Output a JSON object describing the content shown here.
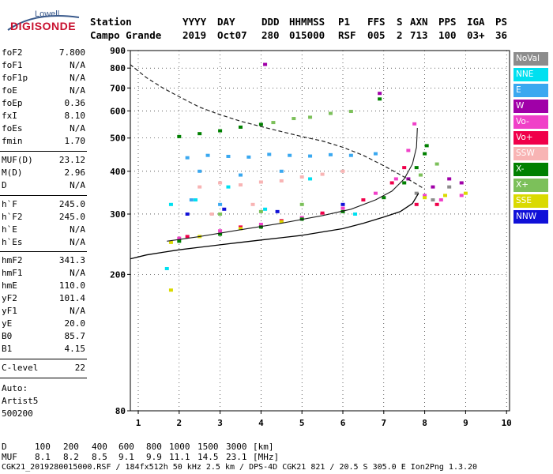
{
  "logo": {
    "line1": "Lowell",
    "line2": "DIGISONDE"
  },
  "header": {
    "labels": [
      "Station",
      "YYYY",
      "DAY",
      "DDD",
      "HHMMSS",
      "P1",
      "FFS",
      "S",
      "AXN",
      "PPS",
      "IGA",
      "PS"
    ],
    "values": [
      "Campo Grande",
      "2019",
      "Oct07",
      "280",
      "015000",
      "RSF",
      "005",
      "2",
      "713",
      "100",
      "03+",
      "36"
    ]
  },
  "params": {
    "g1": [
      {
        "k": "foF2",
        "v": "7.800"
      },
      {
        "k": "foF1",
        "v": "N/A"
      },
      {
        "k": "foF1p",
        "v": "N/A"
      },
      {
        "k": "foE",
        "v": "N/A"
      },
      {
        "k": "foEp",
        "v": "0.36"
      },
      {
        "k": "fxI",
        "v": "8.10"
      },
      {
        "k": "foEs",
        "v": "N/A"
      },
      {
        "k": "fmin",
        "v": "1.70"
      }
    ],
    "g2": [
      {
        "k": "MUF(D)",
        "v": "23.12"
      },
      {
        "k": "M(D)",
        "v": "2.96"
      },
      {
        "k": "D",
        "v": "N/A"
      }
    ],
    "g3": [
      {
        "k": "h`F",
        "v": "245.0"
      },
      {
        "k": "h`F2",
        "v": "245.0"
      },
      {
        "k": "h`E",
        "v": "N/A"
      },
      {
        "k": "h`Es",
        "v": "N/A"
      }
    ],
    "g4": [
      {
        "k": "hmF2",
        "v": "341.3"
      },
      {
        "k": "hmF1",
        "v": "N/A"
      },
      {
        "k": "hmE",
        "v": "110.0"
      },
      {
        "k": "yF2",
        "v": "101.4"
      },
      {
        "k": "yF1",
        "v": "N/A"
      },
      {
        "k": "yE",
        "v": "20.0"
      },
      {
        "k": "B0",
        "v": "85.7"
      },
      {
        "k": "B1",
        "v": "4.15"
      }
    ],
    "g5": [
      {
        "k": "C-level",
        "v": "22"
      }
    ],
    "autoscale": [
      "Auto:",
      "Artist5",
      "500200"
    ]
  },
  "legend": [
    {
      "label": "NoVal",
      "color": "#8c8c8c"
    },
    {
      "label": "NNE",
      "color": "#00e0f0"
    },
    {
      "label": "E",
      "color": "#3aa8f0"
    },
    {
      "label": "W",
      "color": "#a000a8"
    },
    {
      "label": "Vo-",
      "color": "#f040c8"
    },
    {
      "label": "Vo+",
      "color": "#f0004a"
    },
    {
      "label": "SSW",
      "color": "#f8b4b4"
    },
    {
      "label": "X-",
      "color": "#008000"
    },
    {
      "label": "X+",
      "color": "#7cc05a"
    },
    {
      "label": "SSE",
      "color": "#dada00"
    },
    {
      "label": "NNW",
      "color": "#1010d8"
    }
  ],
  "footer": {
    "d_label": "D",
    "d_values": [
      "100",
      "200",
      "400",
      "600",
      "800",
      "1000",
      "1500",
      "3000"
    ],
    "d_unit": "[km]",
    "muf_label": "MUF",
    "muf_values": [
      "8.1",
      "8.2",
      "8.5",
      "9.1",
      "9.9",
      "11.1",
      "14.5",
      "23.1"
    ],
    "muf_unit": "[MHz]",
    "info": "CGK21_2019280015000.RSF / 184fx512h 50 kHz 2.5 km / DPS-4D CGK21 821 / 20.5 S 305.0 E Ion2Png 1.3.20"
  },
  "chart_data": {
    "type": "scatter",
    "title": "",
    "xlabel": "",
    "ylabel": "",
    "xlim": [
      0.8,
      10
    ],
    "ylim": [
      80,
      900
    ],
    "y_scale": "log",
    "xticks": [
      "1",
      "2",
      "3",
      "4",
      "5",
      "6",
      "7",
      "8",
      "9",
      "10"
    ],
    "yticks": [
      "80",
      "200",
      "300",
      "400",
      "500",
      "600",
      "700",
      "800",
      "900"
    ],
    "grid": "dotted",
    "legend_position": "right",
    "series": [
      {
        "name": "NoVal",
        "color": "#8c8c8c",
        "points": [
          [
            7.8,
            345
          ],
          [
            8.2,
            330
          ],
          [
            8.6,
            360
          ]
        ]
      },
      {
        "name": "NNE",
        "color": "#00e0f0",
        "points": [
          [
            1.8,
            320
          ],
          [
            2.4,
            330
          ],
          [
            3.2,
            360
          ],
          [
            4.1,
            310
          ],
          [
            5.2,
            380
          ],
          [
            6.3,
            300
          ],
          [
            1.7,
            208
          ]
        ]
      },
      {
        "name": "E",
        "color": "#3aa8f0",
        "points": [
          [
            2.2,
            438
          ],
          [
            2.7,
            445
          ],
          [
            3.2,
            442
          ],
          [
            3.7,
            440
          ],
          [
            4.2,
            448
          ],
          [
            4.7,
            445
          ],
          [
            5.2,
            443
          ],
          [
            5.7,
            447
          ],
          [
            6.2,
            445
          ],
          [
            6.8,
            450
          ],
          [
            2.5,
            400
          ],
          [
            3.5,
            390
          ],
          [
            4.5,
            400
          ],
          [
            2.3,
            330
          ],
          [
            3.0,
            320
          ]
        ]
      },
      {
        "name": "W",
        "color": "#a000a8",
        "points": [
          [
            4.1,
            820
          ],
          [
            6.9,
            675
          ],
          [
            8.2,
            360
          ],
          [
            8.6,
            380
          ],
          [
            8.9,
            370
          ],
          [
            7.6,
            380
          ]
        ]
      },
      {
        "name": "Vo-",
        "color": "#f040c8",
        "points": [
          [
            2.0,
            255
          ],
          [
            3.0,
            268
          ],
          [
            4.0,
            280
          ],
          [
            5.0,
            293
          ],
          [
            6.0,
            312
          ],
          [
            6.8,
            345
          ],
          [
            7.3,
            380
          ],
          [
            7.6,
            460
          ],
          [
            7.75,
            550
          ],
          [
            8.0,
            340
          ],
          [
            8.4,
            330
          ],
          [
            8.9,
            340
          ]
        ]
      },
      {
        "name": "Vo+",
        "color": "#f0004a",
        "points": [
          [
            2.2,
            258
          ],
          [
            3.5,
            275
          ],
          [
            4.5,
            287
          ],
          [
            5.5,
            302
          ],
          [
            6.5,
            330
          ],
          [
            7.2,
            370
          ],
          [
            7.5,
            410
          ],
          [
            7.8,
            320
          ],
          [
            8.3,
            320
          ]
        ]
      },
      {
        "name": "SSW",
        "color": "#f8b4b4",
        "points": [
          [
            2.5,
            360
          ],
          [
            3.0,
            370
          ],
          [
            3.5,
            365
          ],
          [
            4.0,
            372
          ],
          [
            4.5,
            375
          ],
          [
            5.0,
            385
          ],
          [
            5.5,
            392
          ],
          [
            6.0,
            400
          ],
          [
            2.8,
            300
          ],
          [
            3.8,
            320
          ]
        ]
      },
      {
        "name": "X-",
        "color": "#008000",
        "points": [
          [
            2.0,
            505
          ],
          [
            2.5,
            515
          ],
          [
            3.0,
            525
          ],
          [
            3.5,
            538
          ],
          [
            4.0,
            548
          ],
          [
            2.0,
            250
          ],
          [
            3.0,
            262
          ],
          [
            4.0,
            275
          ],
          [
            5.0,
            290
          ],
          [
            6.0,
            305
          ],
          [
            7.0,
            335
          ],
          [
            7.5,
            370
          ],
          [
            7.8,
            410
          ],
          [
            8.0,
            450
          ],
          [
            8.05,
            475
          ],
          [
            6.9,
            650
          ]
        ]
      },
      {
        "name": "X+",
        "color": "#7cc05a",
        "points": [
          [
            4.3,
            555
          ],
          [
            4.8,
            570
          ],
          [
            5.2,
            575
          ],
          [
            5.7,
            590
          ],
          [
            6.2,
            598
          ],
          [
            3.0,
            300
          ],
          [
            4.0,
            305
          ],
          [
            5.0,
            320
          ],
          [
            7.9,
            390
          ],
          [
            8.3,
            420
          ]
        ]
      },
      {
        "name": "SSE",
        "color": "#dada00",
        "points": [
          [
            1.8,
            248
          ],
          [
            2.5,
            258
          ],
          [
            3.5,
            272
          ],
          [
            4.5,
            285
          ],
          [
            8.0,
            335
          ],
          [
            8.5,
            340
          ],
          [
            9.0,
            345
          ],
          [
            1.8,
            180
          ]
        ]
      },
      {
        "name": "NNW",
        "color": "#1010d8",
        "points": [
          [
            2.2,
            300
          ],
          [
            3.1,
            310
          ],
          [
            4.4,
            305
          ],
          [
            6.0,
            320
          ]
        ]
      }
    ],
    "curves": {
      "muf": [
        [
          0.8,
          820
        ],
        [
          1.2,
          750
        ],
        [
          1.6,
          700
        ],
        [
          2.0,
          660
        ],
        [
          2.5,
          615
        ],
        [
          3.0,
          585
        ],
        [
          3.5,
          560
        ],
        [
          4.0,
          540
        ],
        [
          4.5,
          522
        ],
        [
          5.0,
          505
        ],
        [
          5.5,
          490
        ],
        [
          6.0,
          470
        ],
        [
          6.5,
          445
        ],
        [
          7.0,
          415
        ],
        [
          7.5,
          385
        ],
        [
          8.0,
          355
        ]
      ],
      "virtual_height": [
        [
          0.8,
          222
        ],
        [
          1.2,
          228
        ],
        [
          1.6,
          232
        ],
        [
          2.0,
          236
        ],
        [
          2.5,
          240
        ],
        [
          3.0,
          244
        ],
        [
          3.5,
          248
        ],
        [
          4.0,
          252
        ],
        [
          4.5,
          256
        ],
        [
          5.0,
          260
        ],
        [
          5.5,
          266
        ],
        [
          6.0,
          272
        ],
        [
          6.5,
          282
        ],
        [
          7.0,
          294
        ],
        [
          7.4,
          305
        ],
        [
          7.7,
          322
        ],
        [
          7.85,
          345
        ]
      ],
      "x_trace": [
        [
          1.7,
          250
        ],
        [
          2.5,
          258
        ],
        [
          3.5,
          270
        ],
        [
          4.5,
          282
        ],
        [
          5.5,
          297
        ],
        [
          6.2,
          310
        ],
        [
          6.8,
          330
        ],
        [
          7.2,
          350
        ],
        [
          7.5,
          380
        ],
        [
          7.7,
          420
        ],
        [
          7.8,
          470
        ],
        [
          7.82,
          535
        ]
      ]
    }
  }
}
